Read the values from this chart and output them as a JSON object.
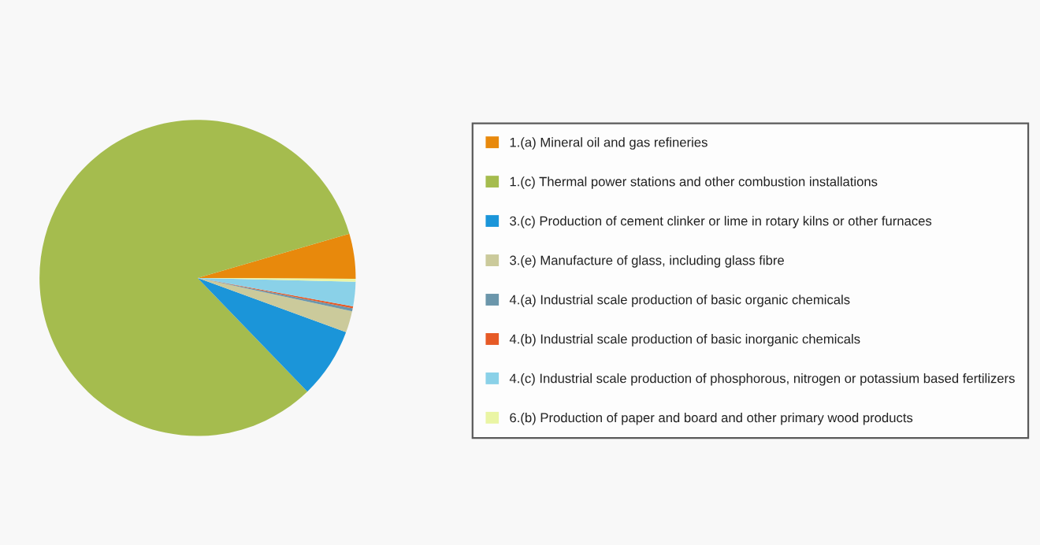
{
  "chart_data": {
    "type": "pie",
    "categories": [
      "1.(a) Mineral oil and gas refineries",
      "1.(c) Thermal power stations and other combustion installations",
      "3.(c) Production of cement clinker or lime in rotary kilns or other furnaces",
      "3.(e) Manufacture of glass, including glass fibre",
      "4.(a) Industrial scale production of basic organic chemicals",
      "4.(b) Industrial scale production of basic inorganic chemicals",
      "4.(c) Industrial scale production of phosphorous, nitrogen or potassium based fertilizers",
      "6.(b) Production of paper and board and other primary wood products"
    ],
    "values": [
      4.6,
      82.7,
      7.2,
      2.2,
      0.3,
      0.2,
      2.5,
      0.3
    ],
    "colors": [
      "#e8890c",
      "#a5bc4e",
      "#1b95d9",
      "#cbca9b",
      "#6b96ab",
      "#e65a26",
      "#8ad1e8",
      "#eaf5a4"
    ],
    "legend": "right"
  }
}
